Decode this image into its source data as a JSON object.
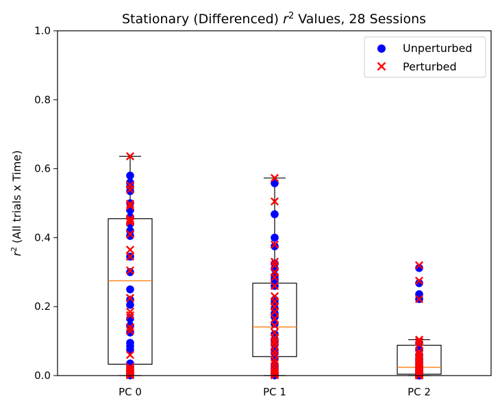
{
  "chart_data": {
    "type": "box",
    "title": "Stationary (Differenced) r² Values, 28 Sessions",
    "title_prefix": "Stationary (Differenced) ",
    "title_var": "r",
    "title_sup": "2",
    "title_suffix": " Values, 28 Sessions",
    "ylabel_var": "r",
    "ylabel_sup": "2",
    "ylabel_rest": " (All trials x Time)",
    "categories": [
      "PC 0",
      "PC 1",
      "PC 2"
    ],
    "ylim": [
      0,
      1.0
    ],
    "yticks": [
      "0.0",
      "0.2",
      "0.4",
      "0.6",
      "0.8",
      "1.0"
    ],
    "grid": false,
    "legend_position": "top-right",
    "boxes": [
      {
        "category": "PC 0",
        "q1": 0.033,
        "median": 0.275,
        "q3": 0.455,
        "whisker_low": 0.0,
        "whisker_high": 0.636
      },
      {
        "category": "PC 1",
        "q1": 0.055,
        "median": 0.141,
        "q3": 0.268,
        "whisker_low": 0.0,
        "whisker_high": 0.573
      },
      {
        "category": "PC 2",
        "q1": 0.004,
        "median": 0.024,
        "q3": 0.088,
        "whisker_low": 0.0,
        "whisker_high": 0.104
      }
    ],
    "series": [
      {
        "name": "Unperturbed",
        "marker": "circle",
        "color": "#0000ff",
        "points": [
          [
            0,
            0.58
          ],
          [
            0,
            0.56
          ],
          [
            0,
            0.548
          ],
          [
            0,
            0.535
          ],
          [
            0,
            0.5
          ],
          [
            0,
            0.48
          ],
          [
            0,
            0.46
          ],
          [
            0,
            0.44
          ],
          [
            0,
            0.42
          ],
          [
            0,
            0.405
          ],
          [
            0,
            0.345
          ],
          [
            0,
            0.3
          ],
          [
            0,
            0.25
          ],
          [
            0,
            0.22
          ],
          [
            0,
            0.205
          ],
          [
            0,
            0.165
          ],
          [
            0,
            0.145
          ],
          [
            0,
            0.125
          ],
          [
            0,
            0.095
          ],
          [
            0,
            0.085
          ],
          [
            0,
            0.075
          ],
          [
            0,
            0.035
          ],
          [
            0,
            0.025
          ],
          [
            0,
            0.015
          ],
          [
            0,
            0.01
          ],
          [
            0,
            0.005
          ],
          [
            0,
            0.003
          ],
          [
            0,
            0.001
          ],
          [
            1,
            0.558
          ],
          [
            1,
            0.468
          ],
          [
            1,
            0.4
          ],
          [
            1,
            0.375
          ],
          [
            1,
            0.325
          ],
          [
            1,
            0.31
          ],
          [
            1,
            0.29
          ],
          [
            1,
            0.28
          ],
          [
            1,
            0.275
          ],
          [
            1,
            0.26
          ],
          [
            1,
            0.22
          ],
          [
            1,
            0.21
          ],
          [
            1,
            0.195
          ],
          [
            1,
            0.18
          ],
          [
            1,
            0.17
          ],
          [
            1,
            0.15
          ],
          [
            1,
            0.12
          ],
          [
            1,
            0.105
          ],
          [
            1,
            0.1
          ],
          [
            1,
            0.09
          ],
          [
            1,
            0.075
          ],
          [
            1,
            0.065
          ],
          [
            1,
            0.05
          ],
          [
            1,
            0.03
          ],
          [
            1,
            0.025
          ],
          [
            1,
            0.02
          ],
          [
            1,
            0.01
          ],
          [
            1,
            0.005
          ],
          [
            1,
            0.003
          ],
          [
            1,
            0.001
          ],
          [
            2,
            0.312
          ],
          [
            2,
            0.268
          ],
          [
            2,
            0.236
          ],
          [
            2,
            0.222
          ],
          [
            2,
            0.095
          ],
          [
            2,
            0.075
          ],
          [
            2,
            0.06
          ],
          [
            2,
            0.05
          ],
          [
            2,
            0.045
          ],
          [
            2,
            0.04
          ],
          [
            2,
            0.035
          ],
          [
            2,
            0.03
          ],
          [
            2,
            0.025
          ],
          [
            2,
            0.02
          ],
          [
            2,
            0.015
          ],
          [
            2,
            0.012
          ],
          [
            2,
            0.01
          ],
          [
            2,
            0.008
          ],
          [
            2,
            0.006
          ],
          [
            2,
            0.005
          ],
          [
            2,
            0.004
          ],
          [
            2,
            0.003
          ],
          [
            2,
            0.002
          ],
          [
            2,
            0.002
          ],
          [
            2,
            0.001
          ],
          [
            2,
            0.001
          ],
          [
            2,
            0.0005
          ],
          [
            2,
            0.0002
          ]
        ]
      },
      {
        "name": "Perturbed",
        "marker": "x",
        "color": "#ff0000",
        "points": [
          [
            0,
            0.636
          ],
          [
            0,
            0.552
          ],
          [
            0,
            0.54
          ],
          [
            0,
            0.498
          ],
          [
            0,
            0.492
          ],
          [
            0,
            0.455
          ],
          [
            0,
            0.45
          ],
          [
            0,
            0.445
          ],
          [
            0,
            0.41
          ],
          [
            0,
            0.365
          ],
          [
            0,
            0.345
          ],
          [
            0,
            0.305
          ],
          [
            0,
            0.225
          ],
          [
            0,
            0.185
          ],
          [
            0,
            0.175
          ],
          [
            0,
            0.14
          ],
          [
            0,
            0.13
          ],
          [
            0,
            0.06
          ],
          [
            0,
            0.025
          ],
          [
            0,
            0.02
          ],
          [
            0,
            0.015
          ],
          [
            0,
            0.012
          ],
          [
            0,
            0.01
          ],
          [
            0,
            0.008
          ],
          [
            0,
            0.006
          ],
          [
            0,
            0.004
          ],
          [
            0,
            0.002
          ],
          [
            0,
            0.001
          ],
          [
            1,
            0.573
          ],
          [
            1,
            0.505
          ],
          [
            1,
            0.38
          ],
          [
            1,
            0.33
          ],
          [
            1,
            0.32
          ],
          [
            1,
            0.3
          ],
          [
            1,
            0.285
          ],
          [
            1,
            0.26
          ],
          [
            1,
            0.23
          ],
          [
            1,
            0.215
          ],
          [
            1,
            0.2
          ],
          [
            1,
            0.185
          ],
          [
            1,
            0.165
          ],
          [
            1,
            0.145
          ],
          [
            1,
            0.125
          ],
          [
            1,
            0.11
          ],
          [
            1,
            0.1
          ],
          [
            1,
            0.095
          ],
          [
            1,
            0.085
          ],
          [
            1,
            0.07
          ],
          [
            1,
            0.06
          ],
          [
            1,
            0.045
          ],
          [
            1,
            0.035
          ],
          [
            1,
            0.025
          ],
          [
            1,
            0.015
          ],
          [
            1,
            0.01
          ],
          [
            1,
            0.006
          ],
          [
            1,
            0.003
          ],
          [
            1,
            0.002
          ],
          [
            1,
            0.001
          ],
          [
            2,
            0.32
          ],
          [
            2,
            0.275
          ],
          [
            2,
            0.222
          ],
          [
            2,
            0.104
          ],
          [
            2,
            0.098
          ],
          [
            2,
            0.09
          ],
          [
            2,
            0.07
          ],
          [
            2,
            0.062
          ],
          [
            2,
            0.055
          ],
          [
            2,
            0.048
          ],
          [
            2,
            0.042
          ],
          [
            2,
            0.038
          ],
          [
            2,
            0.032
          ],
          [
            2,
            0.028
          ],
          [
            2,
            0.022
          ],
          [
            2,
            0.018
          ],
          [
            2,
            0.014
          ],
          [
            2,
            0.011
          ],
          [
            2,
            0.009
          ],
          [
            2,
            0.007
          ],
          [
            2,
            0.005
          ],
          [
            2,
            0.004
          ],
          [
            2,
            0.003
          ],
          [
            2,
            0.002
          ],
          [
            2,
            0.0015
          ],
          [
            2,
            0.001
          ],
          [
            2,
            0.0005
          ],
          [
            2,
            0.0002
          ]
        ]
      }
    ],
    "colors": {
      "box_edge": "#000000",
      "median": "#ff7f0e",
      "background": "#ffffff"
    }
  }
}
